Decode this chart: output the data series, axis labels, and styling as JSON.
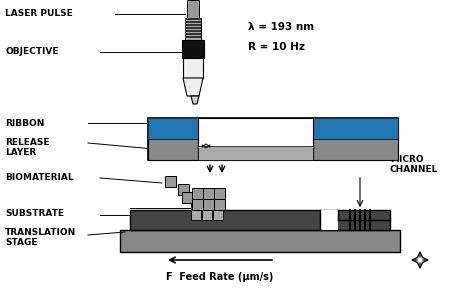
{
  "bg_color": "#ffffff",
  "labels": {
    "laser_pulse": "LASER PULSE",
    "objective": "OBJECTIVE",
    "ribbon": "RIBBON",
    "release_layer": "RELEASE\nLAYER",
    "biomaterial": "BIOMATERIAL",
    "substrate": "SUBSTRATE",
    "translation_stage": "TRANSLATION\nSTAGE",
    "micro_channel": "MICRO\nCHANNEL",
    "lambda_text": "λ = 193 nm",
    "rate": "R = 10 Hz",
    "feed_rate": "F  Feed Rate (μm/s)"
  },
  "colors": {
    "black": "#000000",
    "dark_gray": "#555555",
    "medium_gray": "#777777",
    "light_gray": "#aaaaaa",
    "substrate_dark": "#444444",
    "stage_gray": "#888888",
    "white": "#ffffff"
  }
}
